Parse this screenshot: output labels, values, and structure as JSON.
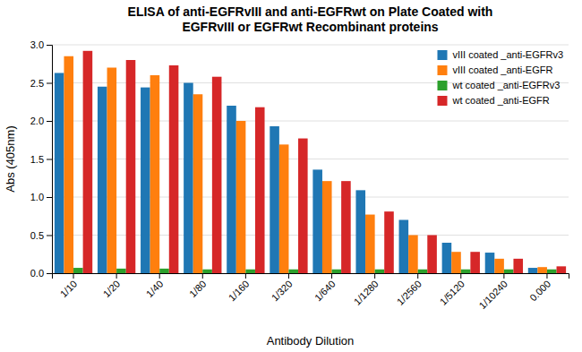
{
  "chart_data": {
    "type": "bar",
    "title": "ELISA of anti-EGFRvIII and anti-EGFRwt on Plate Coated with\nEGFRvIII or EGFRwt Recombinant proteins",
    "x_label": "Antibody Dilution",
    "y_label": "Abs (405nm)",
    "categories": [
      "1/10",
      "1/20",
      "1/40",
      "1/80",
      "1/160",
      "1/320",
      "1/640",
      "1/1280",
      "1/2560",
      "1/5120",
      "1/10240",
      "0.000"
    ],
    "series": [
      {
        "name": "vIII coated _anti-EGFRv3",
        "values": [
          2.63,
          2.45,
          2.44,
          2.5,
          2.2,
          1.93,
          1.36,
          1.09,
          0.7,
          0.4,
          0.27,
          0.07
        ]
      },
      {
        "name": "vIII coated _anti-EGFR",
        "values": [
          2.85,
          2.7,
          2.6,
          2.35,
          2.0,
          1.69,
          1.21,
          0.77,
          0.5,
          0.28,
          0.19,
          0.08
        ]
      },
      {
        "name": "wt coated _anti-EGFRv3",
        "values": [
          0.07,
          0.06,
          0.06,
          0.05,
          0.05,
          0.05,
          0.05,
          0.05,
          0.05,
          0.05,
          0.05,
          0.05
        ]
      },
      {
        "name": "wt coated _anti-EGFR",
        "values": [
          2.92,
          2.8,
          2.73,
          2.58,
          2.18,
          1.77,
          1.21,
          0.81,
          0.5,
          0.28,
          0.19,
          0.09
        ]
      }
    ],
    "ylim": [
      0,
      3.0
    ],
    "yticks": [
      {
        "value": 0.0,
        "label": "0.0"
      },
      0.5,
      {
        "value": 1.0,
        "label": "1.0"
      },
      1.5,
      {
        "value": 2.0,
        "label": "2.0"
      },
      2.5,
      {
        "value": 3.0,
        "label": "3.0"
      }
    ],
    "grid": true,
    "legend": "upper right"
  }
}
